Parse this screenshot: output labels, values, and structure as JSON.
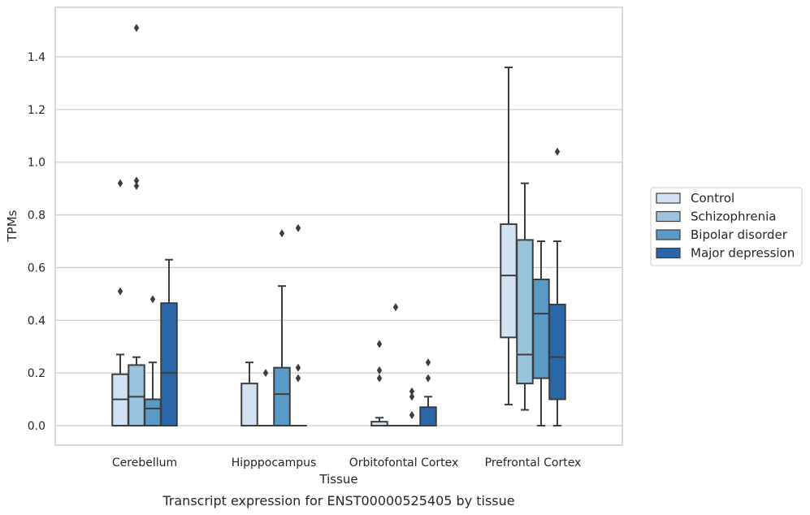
{
  "caption": "Transcript expression for ENST00000525405 by tissue",
  "chart_data": {
    "type": "boxplot",
    "xlabel": "Tissue",
    "ylabel": "TPMs",
    "ylim": [
      -0.07,
      1.59
    ],
    "yticks": [
      0.0,
      0.2,
      0.4,
      0.6,
      0.8,
      1.0,
      1.2,
      1.4
    ],
    "ytick_labels": [
      "0.0",
      "0.2",
      "0.4",
      "0.6",
      "0.8",
      "1.0",
      "1.2",
      "1.4"
    ],
    "grid": "horizontal",
    "legend_position": "right",
    "categories": [
      "Cerebellum",
      "Hipppocampus",
      "Orbitofontal Cortex",
      "Prefrontal Cortex"
    ],
    "series": [
      {
        "name": "Control",
        "color": "#d1e2f2",
        "boxes": [
          {
            "whislo": 0.0,
            "q1": 0.0,
            "med": 0.1,
            "q3": 0.195,
            "whishi": 0.27,
            "fliers": [
              0.51,
              0.92
            ]
          },
          {
            "whislo": 0.0,
            "q1": 0.0,
            "med": 0.0,
            "q3": 0.16,
            "whishi": 0.24,
            "fliers": []
          },
          {
            "whislo": 0.0,
            "q1": 0.0,
            "med": 0.0,
            "q3": 0.015,
            "whishi": 0.03,
            "fliers": [
              0.18,
              0.21,
              0.31
            ]
          },
          {
            "whislo": 0.08,
            "q1": 0.335,
            "med": 0.57,
            "q3": 0.765,
            "whishi": 1.36,
            "fliers": []
          }
        ]
      },
      {
        "name": "Schizophrenia",
        "color": "#9ac3dd",
        "boxes": [
          {
            "whislo": 0.0,
            "q1": 0.0,
            "med": 0.11,
            "q3": 0.23,
            "whishi": 0.26,
            "fliers": [
              0.91,
              0.93,
              1.51
            ]
          },
          {
            "whislo": 0.0,
            "q1": 0.0,
            "med": 0.0,
            "q3": 0.0,
            "whishi": 0.0,
            "fliers": [
              0.2
            ]
          },
          {
            "whislo": 0.0,
            "q1": 0.0,
            "med": 0.0,
            "q3": 0.0,
            "whishi": 0.0,
            "fliers": [
              0.45
            ]
          },
          {
            "whislo": 0.06,
            "q1": 0.16,
            "med": 0.27,
            "q3": 0.705,
            "whishi": 0.92,
            "fliers": []
          }
        ]
      },
      {
        "name": "Bipolar disorder",
        "color": "#5a9ac7",
        "boxes": [
          {
            "whislo": 0.0,
            "q1": 0.0,
            "med": 0.065,
            "q3": 0.1,
            "whishi": 0.24,
            "fliers": [
              0.48
            ]
          },
          {
            "whislo": 0.0,
            "q1": 0.0,
            "med": 0.12,
            "q3": 0.22,
            "whishi": 0.53,
            "fliers": [
              0.73
            ]
          },
          {
            "whislo": 0.0,
            "q1": 0.0,
            "med": 0.0,
            "q3": 0.0,
            "whishi": 0.0,
            "fliers": [
              0.04,
              0.11,
              0.13
            ]
          },
          {
            "whislo": 0.0,
            "q1": 0.18,
            "med": 0.425,
            "q3": 0.555,
            "whishi": 0.7,
            "fliers": []
          }
        ]
      },
      {
        "name": "Major depression",
        "color": "#2a67a8",
        "boxes": [
          {
            "whislo": 0.0,
            "q1": 0.0,
            "med": 0.2,
            "q3": 0.465,
            "whishi": 0.63,
            "fliers": []
          },
          {
            "whislo": 0.0,
            "q1": 0.0,
            "med": 0.0,
            "q3": 0.0,
            "whishi": 0.0,
            "fliers": [
              0.18,
              0.22,
              0.75
            ]
          },
          {
            "whislo": 0.0,
            "q1": 0.0,
            "med": 0.0,
            "q3": 0.07,
            "whishi": 0.11,
            "fliers": [
              0.18,
              0.24
            ]
          },
          {
            "whislo": 0.0,
            "q1": 0.1,
            "med": 0.26,
            "q3": 0.46,
            "whishi": 0.7,
            "fliers": [
              1.04
            ]
          }
        ]
      }
    ]
  }
}
